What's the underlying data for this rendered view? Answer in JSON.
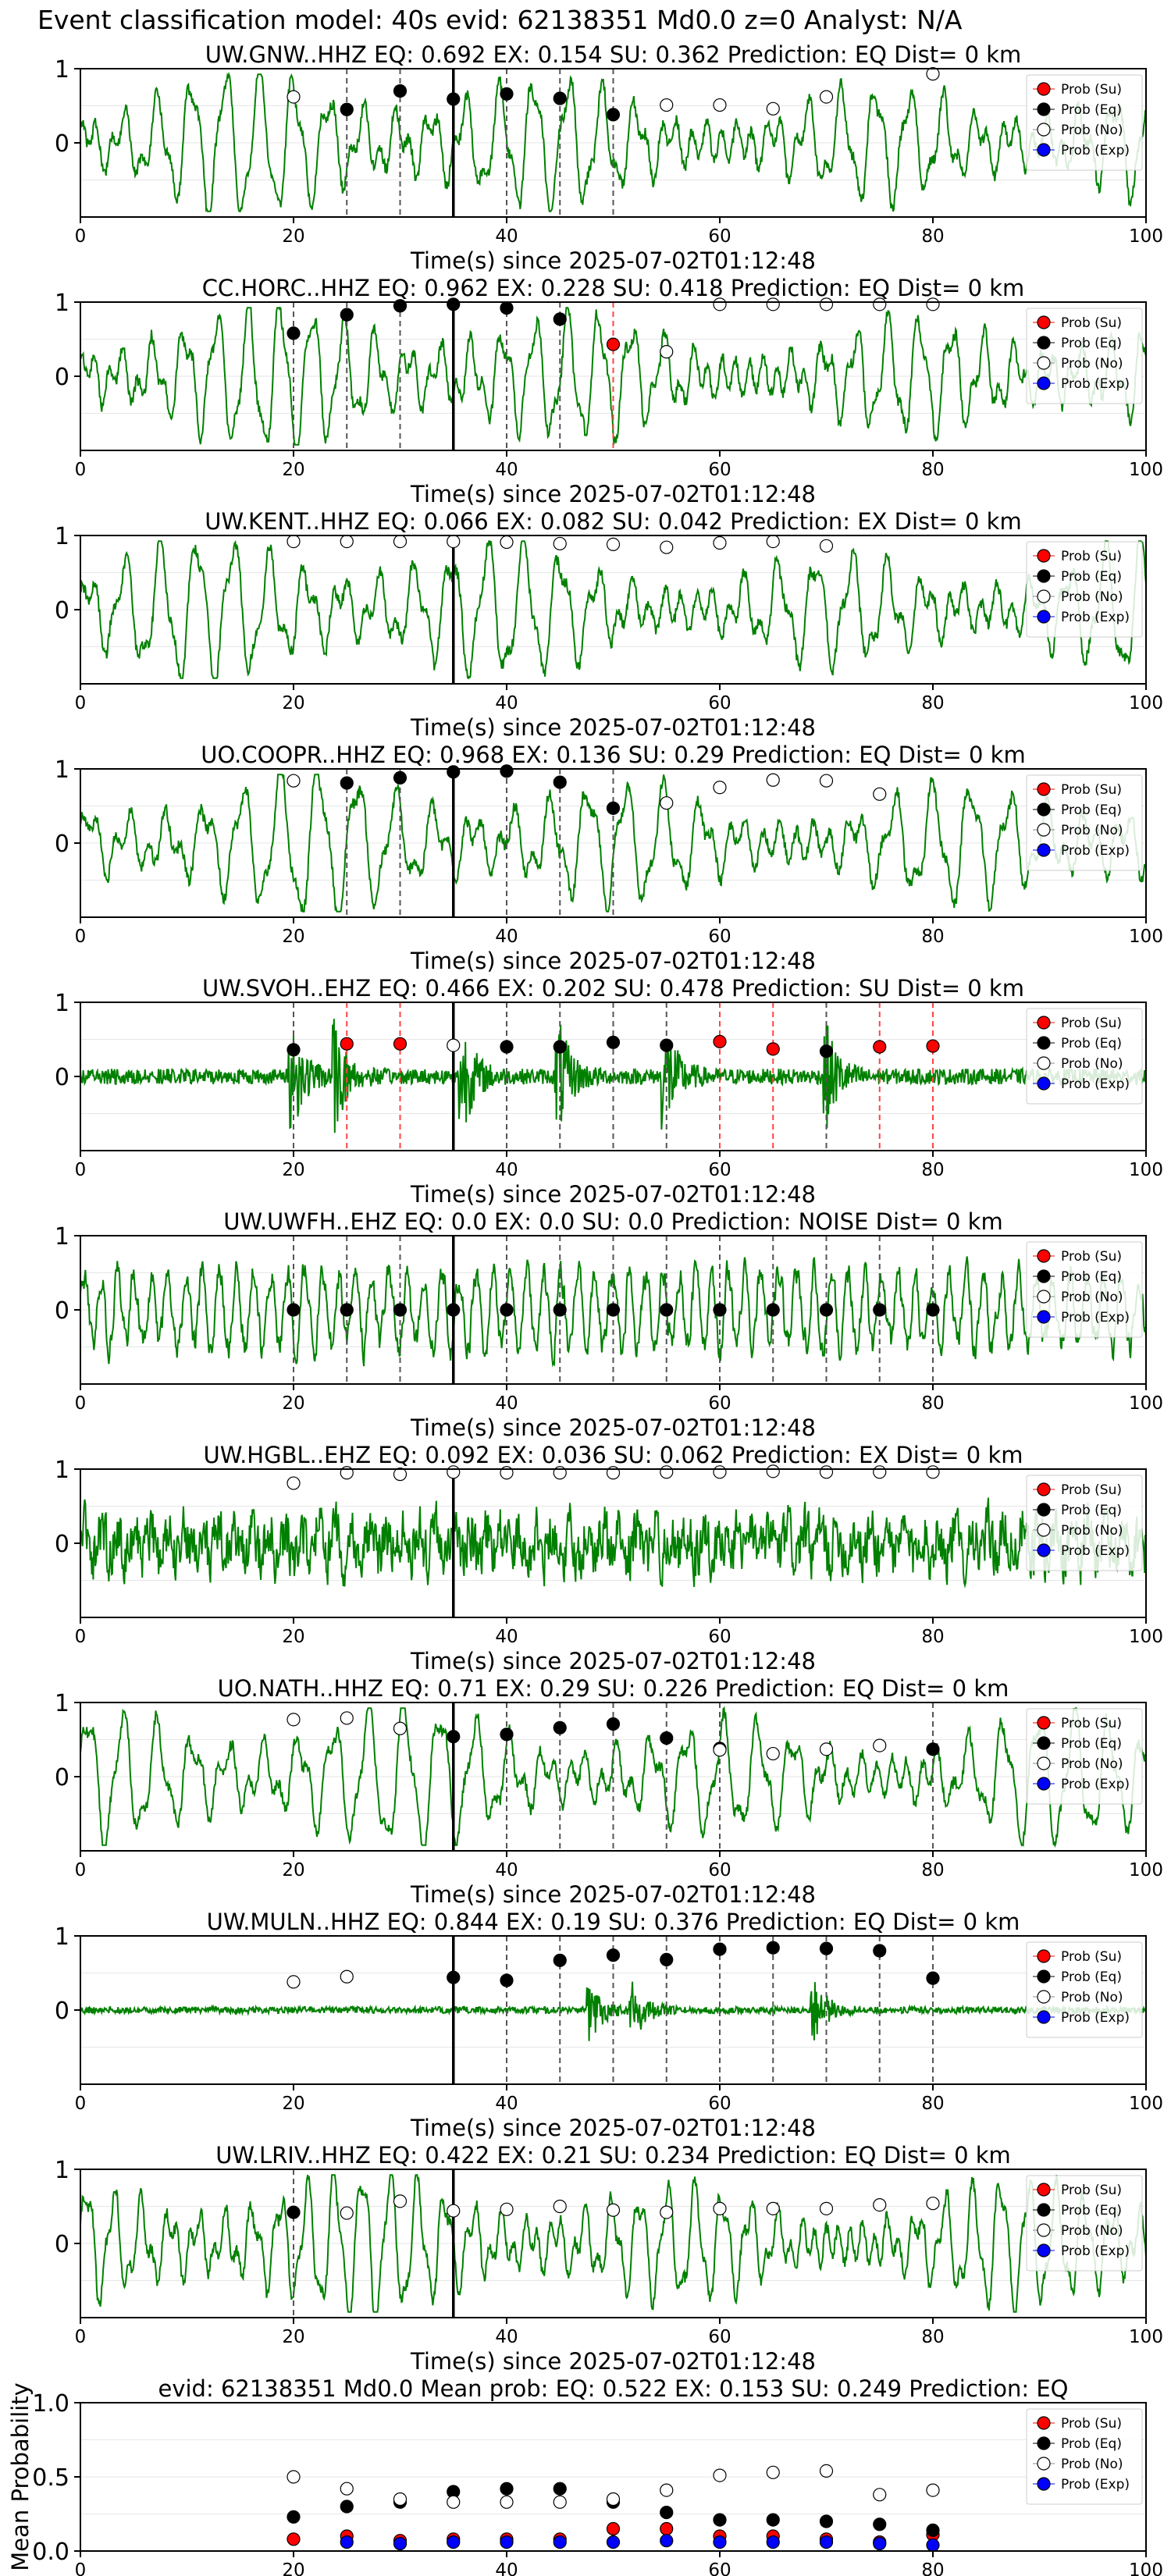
{
  "figure_title": "Event classification model: 40s evid: 62138351 Md0.0 z=0 Analyst: N/A",
  "colors": {
    "trace": "#008000",
    "su": "#ff0000",
    "eq": "#000000",
    "no": "#ffffff",
    "exp": "#0000ff",
    "eq_line": "#555555",
    "su_line": "#ff4444",
    "pick": "#000000"
  },
  "legend_labels": [
    "Prob (Su)",
    "Prob (Eq)",
    "Prob (No)",
    "Prob (Exp)"
  ],
  "chart_data": [
    {
      "type": "line",
      "title": "UW.GNW..HHZ   EQ: 0.692  EX: 0.154  SU: 0.362   Prediction: EQ    Dist= 0 km",
      "xlabel": "Time(s) since 2025-07-02T01:12:48",
      "xlim": [
        0,
        100
      ],
      "ylim": [
        -1,
        1
      ],
      "xticks": [
        "0",
        "20",
        "40",
        "60",
        "80",
        "100"
      ],
      "yticks": [
        "1",
        "0"
      ],
      "legend": "top-right",
      "pick_time": 35,
      "waveform": {
        "style": "smooth",
        "seed": 11,
        "period": 3.2
      },
      "points": [
        [
          20,
          0.62,
          "no"
        ],
        [
          25,
          0.45,
          "eq"
        ],
        [
          30,
          0.7,
          "eq"
        ],
        [
          35,
          0.59,
          "eq"
        ],
        [
          40,
          0.66,
          "eq"
        ],
        [
          45,
          0.6,
          "eq"
        ],
        [
          50,
          0.38,
          "eq"
        ],
        [
          55,
          0.51,
          "no"
        ],
        [
          60,
          0.51,
          "no"
        ],
        [
          65,
          0.46,
          "no"
        ],
        [
          70,
          0.62,
          "no"
        ],
        [
          80,
          0.93,
          "no"
        ]
      ]
    },
    {
      "type": "line",
      "title": "CC.HORC..HHZ   EQ: 0.962  EX: 0.228  SU: 0.418   Prediction: EQ    Dist= 0 km",
      "xlabel": "Time(s) since 2025-07-02T01:12:48",
      "xlim": [
        0,
        100
      ],
      "ylim": [
        -1,
        1
      ],
      "xticks": [
        "0",
        "20",
        "40",
        "60",
        "80",
        "100"
      ],
      "yticks": [
        "1",
        "0"
      ],
      "legend": "top-right",
      "pick_time": 35,
      "waveform": {
        "style": "smooth",
        "seed": 23,
        "period": 3.0
      },
      "points": [
        [
          20,
          0.58,
          "eq"
        ],
        [
          25,
          0.83,
          "eq"
        ],
        [
          30,
          0.95,
          "eq"
        ],
        [
          35,
          0.97,
          "eq"
        ],
        [
          40,
          0.92,
          "eq"
        ],
        [
          45,
          0.77,
          "eq"
        ],
        [
          50,
          0.43,
          "su"
        ],
        [
          55,
          0.33,
          "no"
        ],
        [
          60,
          0.97,
          "no"
        ],
        [
          65,
          0.97,
          "no"
        ],
        [
          70,
          0.97,
          "no"
        ],
        [
          75,
          0.97,
          "no"
        ],
        [
          80,
          0.97,
          "no"
        ]
      ]
    },
    {
      "type": "line",
      "title": "UW.KENT..HHZ   EQ: 0.066  EX: 0.082  SU: 0.042   Prediction: EX    Dist= 0 km",
      "xlabel": "Time(s) since 2025-07-02T01:12:48",
      "xlim": [
        0,
        100
      ],
      "ylim": [
        -1,
        1
      ],
      "xticks": [
        "0",
        "20",
        "40",
        "60",
        "80",
        "100"
      ],
      "yticks": [
        "1",
        "0"
      ],
      "legend": "top-right",
      "pick_time": 35,
      "waveform": {
        "style": "smooth",
        "seed": 37,
        "period": 3.4
      },
      "points": [
        [
          20,
          0.92,
          "no"
        ],
        [
          25,
          0.92,
          "no"
        ],
        [
          30,
          0.92,
          "no"
        ],
        [
          35,
          0.92,
          "no"
        ],
        [
          40,
          0.91,
          "no"
        ],
        [
          45,
          0.89,
          "no"
        ],
        [
          50,
          0.88,
          "no"
        ],
        [
          55,
          0.84,
          "no"
        ],
        [
          60,
          0.9,
          "no"
        ],
        [
          65,
          0.92,
          "no"
        ],
        [
          70,
          0.86,
          "no"
        ]
      ]
    },
    {
      "type": "line",
      "title": "UO.COOPR..HHZ   EQ: 0.968  EX: 0.136  SU: 0.29   Prediction: EQ    Dist= 0 km",
      "xlabel": "Time(s) since 2025-07-02T01:12:48",
      "xlim": [
        0,
        100
      ],
      "ylim": [
        -1,
        1
      ],
      "xticks": [
        "0",
        "20",
        "40",
        "60",
        "80",
        "100"
      ],
      "yticks": [
        "1",
        "0"
      ],
      "legend": "top-right",
      "pick_time": 35,
      "waveform": {
        "style": "smooth",
        "seed": 41,
        "period": 3.6
      },
      "points": [
        [
          20,
          0.84,
          "no"
        ],
        [
          25,
          0.81,
          "eq"
        ],
        [
          30,
          0.88,
          "eq"
        ],
        [
          35,
          0.96,
          "eq"
        ],
        [
          40,
          0.97,
          "eq"
        ],
        [
          45,
          0.82,
          "eq"
        ],
        [
          50,
          0.47,
          "eq"
        ],
        [
          55,
          0.54,
          "no"
        ],
        [
          60,
          0.75,
          "no"
        ],
        [
          65,
          0.85,
          "no"
        ],
        [
          70,
          0.84,
          "no"
        ],
        [
          75,
          0.66,
          "no"
        ]
      ]
    },
    {
      "type": "line",
      "title": "UW.SVOH..EHZ   EQ: 0.466  EX: 0.202  SU: 0.478   Prediction: SU    Dist= 0 km",
      "xlabel": "Time(s) since 2025-07-02T01:12:48",
      "xlim": [
        0,
        100
      ],
      "ylim": [
        -1,
        1
      ],
      "xticks": [
        "0",
        "20",
        "40",
        "60",
        "80",
        "100"
      ],
      "yticks": [
        "1",
        "0"
      ],
      "legend": "top-right",
      "pick_time": 35,
      "waveform": {
        "style": "noisy-bursts",
        "seed": 53,
        "bursts": [
          20,
          24,
          36,
          45,
          55,
          70
        ]
      },
      "points": [
        [
          20,
          0.36,
          "eq"
        ],
        [
          25,
          0.44,
          "su"
        ],
        [
          30,
          0.44,
          "su"
        ],
        [
          35,
          0.42,
          "no"
        ],
        [
          40,
          0.4,
          "eq"
        ],
        [
          45,
          0.4,
          "eq"
        ],
        [
          50,
          0.46,
          "eq"
        ],
        [
          55,
          0.42,
          "eq"
        ],
        [
          60,
          0.47,
          "su"
        ],
        [
          65,
          0.37,
          "su"
        ],
        [
          70,
          0.34,
          "eq"
        ],
        [
          75,
          0.4,
          "su"
        ],
        [
          80,
          0.41,
          "su"
        ]
      ]
    },
    {
      "type": "line",
      "title": "UW.UWFH..EHZ   EQ: 0.0  EX: 0.0  SU: 0.0   Prediction: NOISE    Dist= 0 km",
      "xlabel": "Time(s) since 2025-07-02T01:12:48",
      "xlim": [
        0,
        100
      ],
      "ylim": [
        -1,
        1
      ],
      "xticks": [
        "0",
        "20",
        "40",
        "60",
        "80",
        "100"
      ],
      "yticks": [
        "1",
        "0"
      ],
      "legend": "top-right",
      "pick_time": 35,
      "waveform": {
        "style": "rough",
        "seed": 67,
        "period": 1.6
      },
      "points": [
        [
          20,
          0.0,
          "eq"
        ],
        [
          25,
          0.0,
          "eq"
        ],
        [
          30,
          0.0,
          "eq"
        ],
        [
          35,
          0.0,
          "eq"
        ],
        [
          40,
          0.0,
          "eq"
        ],
        [
          45,
          0.0,
          "eq"
        ],
        [
          50,
          0.0,
          "eq"
        ],
        [
          55,
          0.0,
          "eq"
        ],
        [
          60,
          0.0,
          "eq"
        ],
        [
          65,
          0.0,
          "eq"
        ],
        [
          70,
          0.0,
          "eq"
        ],
        [
          75,
          0.0,
          "eq"
        ],
        [
          80,
          0.0,
          "eq"
        ]
      ]
    },
    {
      "type": "line",
      "title": "UW.HGBL..EHZ   EQ: 0.092  EX: 0.036  SU: 0.062   Prediction: EX    Dist= 0 km",
      "xlabel": "Time(s) since 2025-07-02T01:12:48",
      "xlim": [
        0,
        100
      ],
      "ylim": [
        -1,
        1
      ],
      "xticks": [
        "0",
        "20",
        "40",
        "60",
        "80",
        "100"
      ],
      "yticks": [
        "1",
        "0"
      ],
      "legend": "top-right",
      "pick_time": 35,
      "waveform": {
        "style": "dense",
        "seed": 79,
        "period": 0.8
      },
      "points": [
        [
          20,
          0.81,
          "no"
        ],
        [
          25,
          0.95,
          "no"
        ],
        [
          30,
          0.93,
          "no"
        ],
        [
          35,
          0.96,
          "no"
        ],
        [
          40,
          0.95,
          "no"
        ],
        [
          45,
          0.95,
          "no"
        ],
        [
          50,
          0.95,
          "no"
        ],
        [
          55,
          0.96,
          "no"
        ],
        [
          60,
          0.96,
          "no"
        ],
        [
          65,
          0.97,
          "no"
        ],
        [
          70,
          0.96,
          "no"
        ],
        [
          75,
          0.96,
          "no"
        ],
        [
          80,
          0.96,
          "no"
        ]
      ]
    },
    {
      "type": "line",
      "title": "UO.NATH..HHZ   EQ: 0.71  EX: 0.29  SU: 0.226   Prediction: EQ    Dist= 0 km",
      "xlabel": "Time(s) since 2025-07-02T01:12:48",
      "xlim": [
        0,
        100
      ],
      "ylim": [
        -1,
        1
      ],
      "xticks": [
        "0",
        "20",
        "40",
        "60",
        "80",
        "100"
      ],
      "yticks": [
        "1",
        "0"
      ],
      "legend": "top-right",
      "pick_time": 35,
      "waveform": {
        "style": "smooth",
        "seed": 83,
        "period": 3.3
      },
      "points": [
        [
          20,
          0.77,
          "no"
        ],
        [
          25,
          0.79,
          "no"
        ],
        [
          30,
          0.65,
          "no"
        ],
        [
          35,
          0.54,
          "eq"
        ],
        [
          40,
          0.57,
          "eq"
        ],
        [
          45,
          0.66,
          "eq"
        ],
        [
          50,
          0.71,
          "eq"
        ],
        [
          55,
          0.52,
          "eq"
        ],
        [
          60,
          0.38,
          "eq"
        ],
        [
          60,
          0.36,
          "no"
        ],
        [
          65,
          0.31,
          "no"
        ],
        [
          70,
          0.37,
          "no"
        ],
        [
          75,
          0.42,
          "no"
        ],
        [
          80,
          0.37,
          "eq"
        ]
      ]
    },
    {
      "type": "line",
      "title": "UW.MULN..HHZ   EQ: 0.844  EX: 0.19  SU: 0.376   Prediction: EQ    Dist= 0 km",
      "xlabel": "Time(s) since 2025-07-02T01:12:48",
      "xlim": [
        0,
        100
      ],
      "ylim": [
        -1,
        1
      ],
      "xticks": [
        "0",
        "20",
        "40",
        "60",
        "80",
        "100"
      ],
      "yticks": [
        "1",
        "0"
      ],
      "legend": "top-right",
      "pick_time": 35,
      "waveform": {
        "style": "quiet-bursts",
        "seed": 97,
        "bursts": [
          48,
          52,
          69
        ]
      },
      "points": [
        [
          20,
          0.38,
          "no"
        ],
        [
          25,
          0.45,
          "no"
        ],
        [
          35,
          0.44,
          "eq"
        ],
        [
          40,
          0.4,
          "eq"
        ],
        [
          45,
          0.67,
          "eq"
        ],
        [
          50,
          0.74,
          "eq"
        ],
        [
          55,
          0.68,
          "eq"
        ],
        [
          60,
          0.82,
          "eq"
        ],
        [
          65,
          0.84,
          "eq"
        ],
        [
          70,
          0.83,
          "eq"
        ],
        [
          75,
          0.8,
          "eq"
        ],
        [
          80,
          0.43,
          "eq"
        ]
      ]
    },
    {
      "type": "line",
      "title": "UW.LRIV..HHZ   EQ: 0.422  EX: 0.21  SU: 0.234   Prediction: EQ    Dist= 0 km",
      "xlabel": "Time(s) since 2025-07-02T01:12:48",
      "xlim": [
        0,
        100
      ],
      "ylim": [
        -1,
        1
      ],
      "xticks": [
        "0",
        "20",
        "40",
        "60",
        "80",
        "100"
      ],
      "yticks": [
        "1",
        "0"
      ],
      "legend": "top-right",
      "pick_time": 35,
      "waveform": {
        "style": "smooth",
        "seed": 109,
        "period": 2.6
      },
      "points": [
        [
          20,
          0.42,
          "eq"
        ],
        [
          25,
          0.41,
          "no"
        ],
        [
          30,
          0.57,
          "no"
        ],
        [
          35,
          0.44,
          "no"
        ],
        [
          40,
          0.46,
          "no"
        ],
        [
          45,
          0.5,
          "no"
        ],
        [
          50,
          0.45,
          "no"
        ],
        [
          55,
          0.42,
          "no"
        ],
        [
          60,
          0.47,
          "no"
        ],
        [
          65,
          0.47,
          "no"
        ],
        [
          70,
          0.47,
          "no"
        ],
        [
          75,
          0.52,
          "no"
        ],
        [
          80,
          0.54,
          "no"
        ]
      ]
    },
    {
      "type": "scatter",
      "title": "evid: 62138351  Md0.0   Mean prob:   EQ: 0.522  EX: 0.153  SU: 0.249   Prediction: EQ",
      "xlabel": "",
      "ylabel": "Mean Probability",
      "xlim": [
        0,
        100
      ],
      "ylim": [
        0,
        1
      ],
      "xticks": [
        "0",
        "20",
        "40",
        "60",
        "80",
        "100"
      ],
      "yticks": [
        "1.0",
        "0.5",
        "0.0"
      ],
      "legend": "top-right",
      "series": [
        {
          "name": "Prob (Su)",
          "key": "su",
          "x": [
            20,
            25,
            30,
            35,
            40,
            45,
            50,
            55,
            60,
            65,
            70,
            75,
            80
          ],
          "y": [
            0.08,
            0.1,
            0.07,
            0.08,
            0.08,
            0.08,
            0.15,
            0.15,
            0.1,
            0.1,
            0.08,
            0.06,
            0.11
          ]
        },
        {
          "name": "Prob (Eq)",
          "key": "eq",
          "x": [
            20,
            25,
            30,
            35,
            40,
            45,
            50,
            55,
            60,
            65,
            70,
            75,
            80
          ],
          "y": [
            0.23,
            0.3,
            0.33,
            0.4,
            0.42,
            0.42,
            0.33,
            0.26,
            0.21,
            0.21,
            0.2,
            0.18,
            0.14
          ]
        },
        {
          "name": "Prob (No)",
          "key": "no",
          "x": [
            20,
            25,
            30,
            35,
            40,
            45,
            50,
            55,
            60,
            65,
            70,
            75,
            80
          ],
          "y": [
            0.5,
            0.42,
            0.35,
            0.33,
            0.33,
            0.33,
            0.35,
            0.41,
            0.51,
            0.53,
            0.54,
            0.38,
            0.41
          ]
        },
        {
          "name": "Prob (Exp)",
          "key": "exp",
          "x": [
            25,
            30,
            35,
            40,
            45,
            50,
            55,
            60,
            65,
            70,
            75,
            80
          ],
          "y": [
            0.06,
            0.05,
            0.06,
            0.06,
            0.06,
            0.06,
            0.07,
            0.06,
            0.06,
            0.06,
            0.05,
            0.04
          ]
        }
      ]
    }
  ]
}
